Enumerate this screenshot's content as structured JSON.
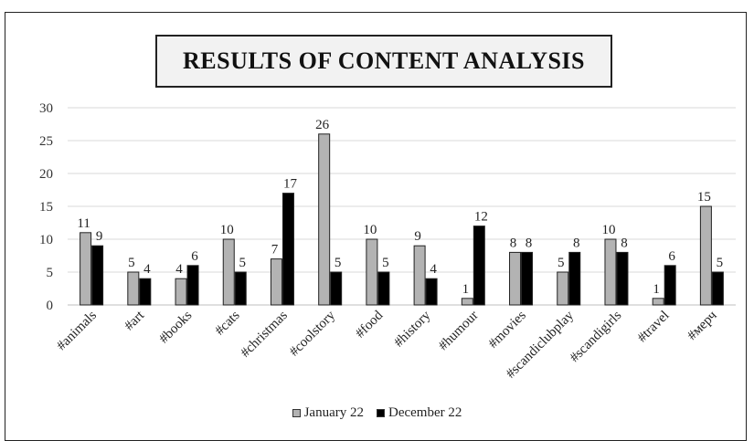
{
  "chart_data": {
    "type": "bar",
    "title": "RESULTS OF CONTENT ANALYSIS",
    "categories": [
      "#animals",
      "#art",
      "#books",
      "#cats",
      "#christmas",
      "#coolstory",
      "#food",
      "#history",
      "#humour",
      "#movies",
      "#scandiclubplay",
      "#scandigirls",
      "#travel",
      "#мерч"
    ],
    "series": [
      {
        "name": "January 22",
        "color": "#b3b3b3",
        "values": [
          11,
          5,
          4,
          10,
          7,
          26,
          10,
          9,
          1,
          8,
          5,
          10,
          1,
          15
        ]
      },
      {
        "name": "December 22",
        "color": "#000000",
        "values": [
          9,
          4,
          6,
          5,
          17,
          5,
          5,
          4,
          12,
          8,
          8,
          8,
          6,
          5
        ]
      }
    ],
    "ylim": [
      0,
      30
    ],
    "yticks": [
      0,
      5,
      10,
      15,
      20,
      25,
      30
    ],
    "grid": true,
    "legend_position": "bottom",
    "data_labels": true
  }
}
